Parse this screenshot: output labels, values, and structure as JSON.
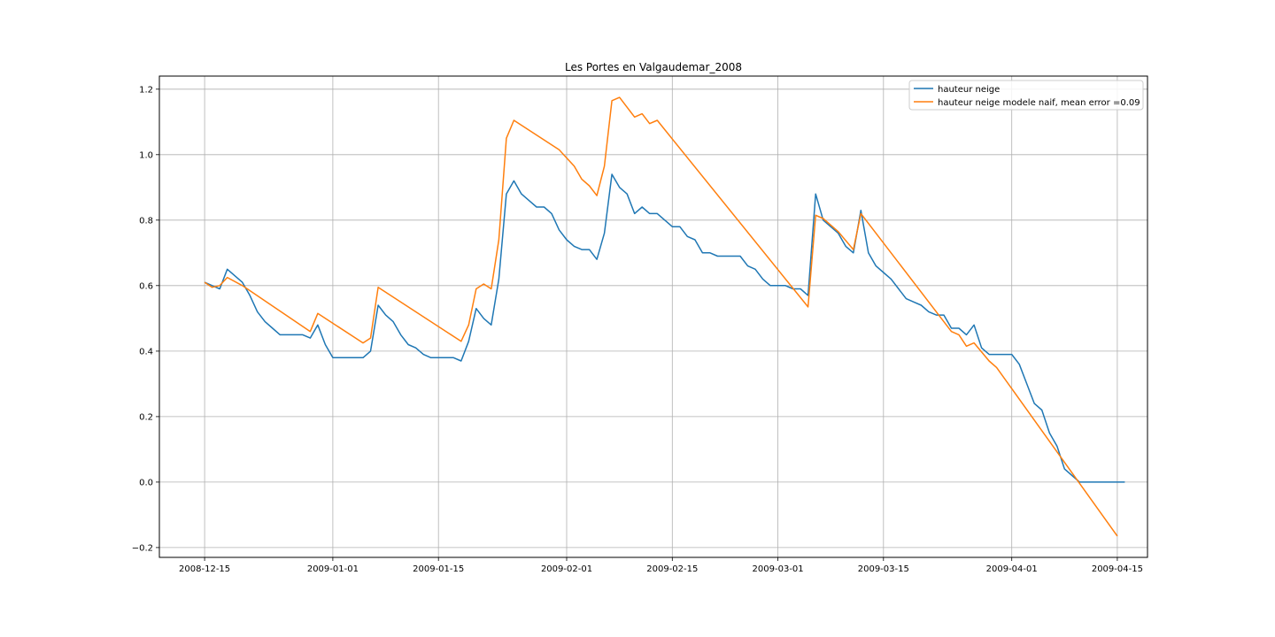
{
  "chart_data": {
    "type": "line",
    "title": "Les Portes en Valgaudemar_2008",
    "xlabel": "",
    "ylabel": "",
    "xlim": [
      "2008-12-09",
      "2009-04-19"
    ],
    "ylim": [
      -0.23,
      1.24
    ],
    "grid": true,
    "legend_position": "top-right",
    "x_ticks": [
      "2008-12-15",
      "2009-01-01",
      "2009-01-15",
      "2009-02-01",
      "2009-02-15",
      "2009-03-01",
      "2009-03-15",
      "2009-04-01",
      "2009-04-15"
    ],
    "y_ticks": [
      {
        "value": -0.2,
        "label": "−0.2"
      },
      {
        "value": 0.0,
        "label": "0.0"
      },
      {
        "value": 0.2,
        "label": "0.2"
      },
      {
        "value": 0.4,
        "label": "0.4"
      },
      {
        "value": 0.6,
        "label": "0.6"
      },
      {
        "value": 0.8,
        "label": "0.8"
      },
      {
        "value": 1.0,
        "label": "1.0"
      },
      {
        "value": 1.2,
        "label": "1.2"
      }
    ],
    "series": [
      {
        "name": "hauteur neige",
        "color": "#1f77b4",
        "points": [
          [
            "2008-12-15",
            0.61
          ],
          [
            "2008-12-16",
            0.6
          ],
          [
            "2008-12-17",
            0.59
          ],
          [
            "2008-12-18",
            0.65
          ],
          [
            "2008-12-19",
            0.63
          ],
          [
            "2008-12-20",
            0.61
          ],
          [
            "2008-12-21",
            0.57
          ],
          [
            "2008-12-22",
            0.52
          ],
          [
            "2008-12-23",
            0.49
          ],
          [
            "2008-12-24",
            0.47
          ],
          [
            "2008-12-25",
            0.45
          ],
          [
            "2008-12-26",
            0.45
          ],
          [
            "2008-12-27",
            0.45
          ],
          [
            "2008-12-28",
            0.45
          ],
          [
            "2008-12-29",
            0.44
          ],
          [
            "2008-12-30",
            0.48
          ],
          [
            "2008-12-31",
            0.42
          ],
          [
            "2009-01-01",
            0.38
          ],
          [
            "2009-01-02",
            0.38
          ],
          [
            "2009-01-03",
            0.38
          ],
          [
            "2009-01-04",
            0.38
          ],
          [
            "2009-01-05",
            0.38
          ],
          [
            "2009-01-06",
            0.4
          ],
          [
            "2009-01-07",
            0.54
          ],
          [
            "2009-01-08",
            0.51
          ],
          [
            "2009-01-09",
            0.49
          ],
          [
            "2009-01-10",
            0.45
          ],
          [
            "2009-01-11",
            0.42
          ],
          [
            "2009-01-12",
            0.41
          ],
          [
            "2009-01-13",
            0.39
          ],
          [
            "2009-01-14",
            0.38
          ],
          [
            "2009-01-15",
            0.38
          ],
          [
            "2009-01-16",
            0.38
          ],
          [
            "2009-01-17",
            0.38
          ],
          [
            "2009-01-18",
            0.37
          ],
          [
            "2009-01-19",
            0.43
          ],
          [
            "2009-01-20",
            0.53
          ],
          [
            "2009-01-21",
            0.5
          ],
          [
            "2009-01-22",
            0.48
          ],
          [
            "2009-01-23",
            0.62
          ],
          [
            "2009-01-24",
            0.88
          ],
          [
            "2009-01-25",
            0.92
          ],
          [
            "2009-01-26",
            0.88
          ],
          [
            "2009-01-27",
            0.86
          ],
          [
            "2009-01-28",
            0.84
          ],
          [
            "2009-01-29",
            0.84
          ],
          [
            "2009-01-30",
            0.82
          ],
          [
            "2009-01-31",
            0.77
          ],
          [
            "2009-02-01",
            0.74
          ],
          [
            "2009-02-02",
            0.72
          ],
          [
            "2009-02-03",
            0.71
          ],
          [
            "2009-02-04",
            0.71
          ],
          [
            "2009-02-05",
            0.68
          ],
          [
            "2009-02-06",
            0.76
          ],
          [
            "2009-02-07",
            0.94
          ],
          [
            "2009-02-08",
            0.9
          ],
          [
            "2009-02-09",
            0.88
          ],
          [
            "2009-02-10",
            0.82
          ],
          [
            "2009-02-11",
            0.84
          ],
          [
            "2009-02-12",
            0.82
          ],
          [
            "2009-02-13",
            0.82
          ],
          [
            "2009-02-14",
            0.8
          ],
          [
            "2009-02-15",
            0.78
          ],
          [
            "2009-02-16",
            0.78
          ],
          [
            "2009-02-17",
            0.75
          ],
          [
            "2009-02-18",
            0.74
          ],
          [
            "2009-02-19",
            0.7
          ],
          [
            "2009-02-20",
            0.7
          ],
          [
            "2009-02-21",
            0.69
          ],
          [
            "2009-02-22",
            0.69
          ],
          [
            "2009-02-23",
            0.69
          ],
          [
            "2009-02-24",
            0.69
          ],
          [
            "2009-02-25",
            0.66
          ],
          [
            "2009-02-26",
            0.65
          ],
          [
            "2009-02-27",
            0.62
          ],
          [
            "2009-02-28",
            0.6
          ],
          [
            "2009-03-01",
            0.6
          ],
          [
            "2009-03-02",
            0.6
          ],
          [
            "2009-03-03",
            0.59
          ],
          [
            "2009-03-04",
            0.59
          ],
          [
            "2009-03-05",
            0.57
          ],
          [
            "2009-03-06",
            0.88
          ],
          [
            "2009-03-07",
            0.8
          ],
          [
            "2009-03-08",
            0.78
          ],
          [
            "2009-03-09",
            0.76
          ],
          [
            "2009-03-10",
            0.72
          ],
          [
            "2009-03-11",
            0.7
          ],
          [
            "2009-03-12",
            0.83
          ],
          [
            "2009-03-13",
            0.7
          ],
          [
            "2009-03-14",
            0.66
          ],
          [
            "2009-03-15",
            0.64
          ],
          [
            "2009-03-16",
            0.62
          ],
          [
            "2009-03-17",
            0.59
          ],
          [
            "2009-03-18",
            0.56
          ],
          [
            "2009-03-19",
            0.55
          ],
          [
            "2009-03-20",
            0.54
          ],
          [
            "2009-03-21",
            0.52
          ],
          [
            "2009-03-22",
            0.51
          ],
          [
            "2009-03-23",
            0.51
          ],
          [
            "2009-03-24",
            0.47
          ],
          [
            "2009-03-25",
            0.47
          ],
          [
            "2009-03-26",
            0.45
          ],
          [
            "2009-03-27",
            0.48
          ],
          [
            "2009-03-28",
            0.41
          ],
          [
            "2009-03-29",
            0.39
          ],
          [
            "2009-03-30",
            0.39
          ],
          [
            "2009-03-31",
            0.39
          ],
          [
            "2009-04-01",
            0.39
          ],
          [
            "2009-04-02",
            0.36
          ],
          [
            "2009-04-03",
            0.3
          ],
          [
            "2009-04-04",
            0.24
          ],
          [
            "2009-04-05",
            0.22
          ],
          [
            "2009-04-06",
            0.15
          ],
          [
            "2009-04-07",
            0.11
          ],
          [
            "2009-04-08",
            0.04
          ],
          [
            "2009-04-09",
            0.02
          ],
          [
            "2009-04-10",
            0.0
          ],
          [
            "2009-04-11",
            0.0
          ],
          [
            "2009-04-12",
            0.0
          ],
          [
            "2009-04-13",
            0.0
          ],
          [
            "2009-04-14",
            0.0
          ],
          [
            "2009-04-15",
            0.0
          ],
          [
            "2009-04-16",
            0.0
          ]
        ]
      },
      {
        "name": "hauteur neige modele naif, mean error =0.09",
        "color": "#ff7f0e",
        "points": [
          [
            "2008-12-15",
            0.61
          ],
          [
            "2008-12-16",
            0.595
          ],
          [
            "2008-12-17",
            0.6
          ],
          [
            "2008-12-18",
            0.625
          ],
          [
            "2008-12-20",
            0.6
          ],
          [
            "2008-12-29",
            0.46
          ],
          [
            "2008-12-30",
            0.515
          ],
          [
            "2009-01-05",
            0.425
          ],
          [
            "2009-01-06",
            0.44
          ],
          [
            "2009-01-07",
            0.595
          ],
          [
            "2009-01-18",
            0.43
          ],
          [
            "2009-01-19",
            0.48
          ],
          [
            "2009-01-20",
            0.59
          ],
          [
            "2009-01-21",
            0.605
          ],
          [
            "2009-01-22",
            0.59
          ],
          [
            "2009-01-23",
            0.74
          ],
          [
            "2009-01-24",
            1.05
          ],
          [
            "2009-01-25",
            1.105
          ],
          [
            "2009-01-31",
            1.015
          ],
          [
            "2009-02-02",
            0.965
          ],
          [
            "2009-02-03",
            0.925
          ],
          [
            "2009-02-04",
            0.905
          ],
          [
            "2009-02-05",
            0.875
          ],
          [
            "2009-02-06",
            0.965
          ],
          [
            "2009-02-07",
            1.165
          ],
          [
            "2009-02-08",
            1.175
          ],
          [
            "2009-02-10",
            1.115
          ],
          [
            "2009-02-11",
            1.125
          ],
          [
            "2009-02-12",
            1.095
          ],
          [
            "2009-02-13",
            1.105
          ],
          [
            "2009-03-05",
            0.535
          ],
          [
            "2009-03-06",
            0.815
          ],
          [
            "2009-03-07",
            0.805
          ],
          [
            "2009-03-09",
            0.765
          ],
          [
            "2009-03-11",
            0.71
          ],
          [
            "2009-03-12",
            0.82
          ],
          [
            "2009-03-24",
            0.46
          ],
          [
            "2009-03-25",
            0.45
          ],
          [
            "2009-03-26",
            0.415
          ],
          [
            "2009-03-27",
            0.425
          ],
          [
            "2009-03-29",
            0.37
          ],
          [
            "2009-03-30",
            0.35
          ],
          [
            "2009-04-15",
            -0.165
          ]
        ]
      }
    ]
  }
}
